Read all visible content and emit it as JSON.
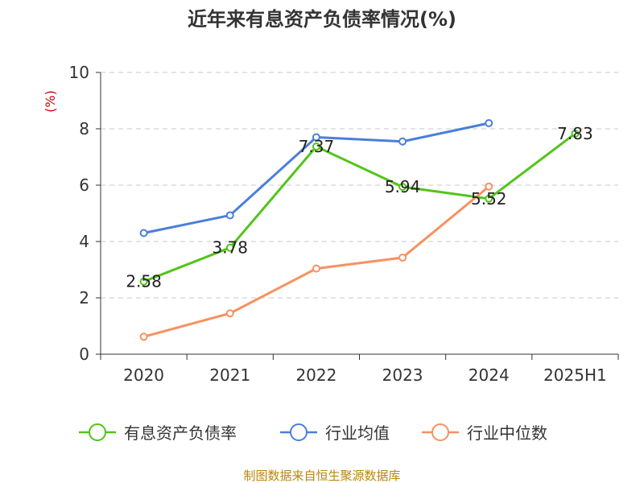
{
  "chart_data": {
    "type": "line",
    "title": "近年来有息资产负债率情况(%)",
    "ylabel": "(%)",
    "xlabel": "",
    "categories": [
      "2020",
      "2021",
      "2022",
      "2023",
      "2024",
      "2025H1"
    ],
    "ylim": [
      0,
      10
    ],
    "yticks": [
      0,
      2,
      4,
      6,
      8,
      10
    ],
    "grid": true,
    "legend_position": "bottom",
    "series": [
      {
        "name": "有息资产负债率",
        "color": "#52c41a",
        "values": [
          2.58,
          3.78,
          7.37,
          5.94,
          5.52,
          7.83
        ],
        "labels": [
          "2.58",
          "3.78",
          "7.37",
          "5.94",
          "5.52",
          "7.83"
        ]
      },
      {
        "name": "行业均值",
        "color": "#4a7fd9",
        "values": [
          4.3,
          4.93,
          7.7,
          7.55,
          8.2,
          null
        ]
      },
      {
        "name": "行业中位数",
        "color": "#f79160",
        "values": [
          0.62,
          1.45,
          3.04,
          3.43,
          5.95,
          null
        ]
      }
    ],
    "source": "制图数据来自恒生聚源数据库"
  }
}
